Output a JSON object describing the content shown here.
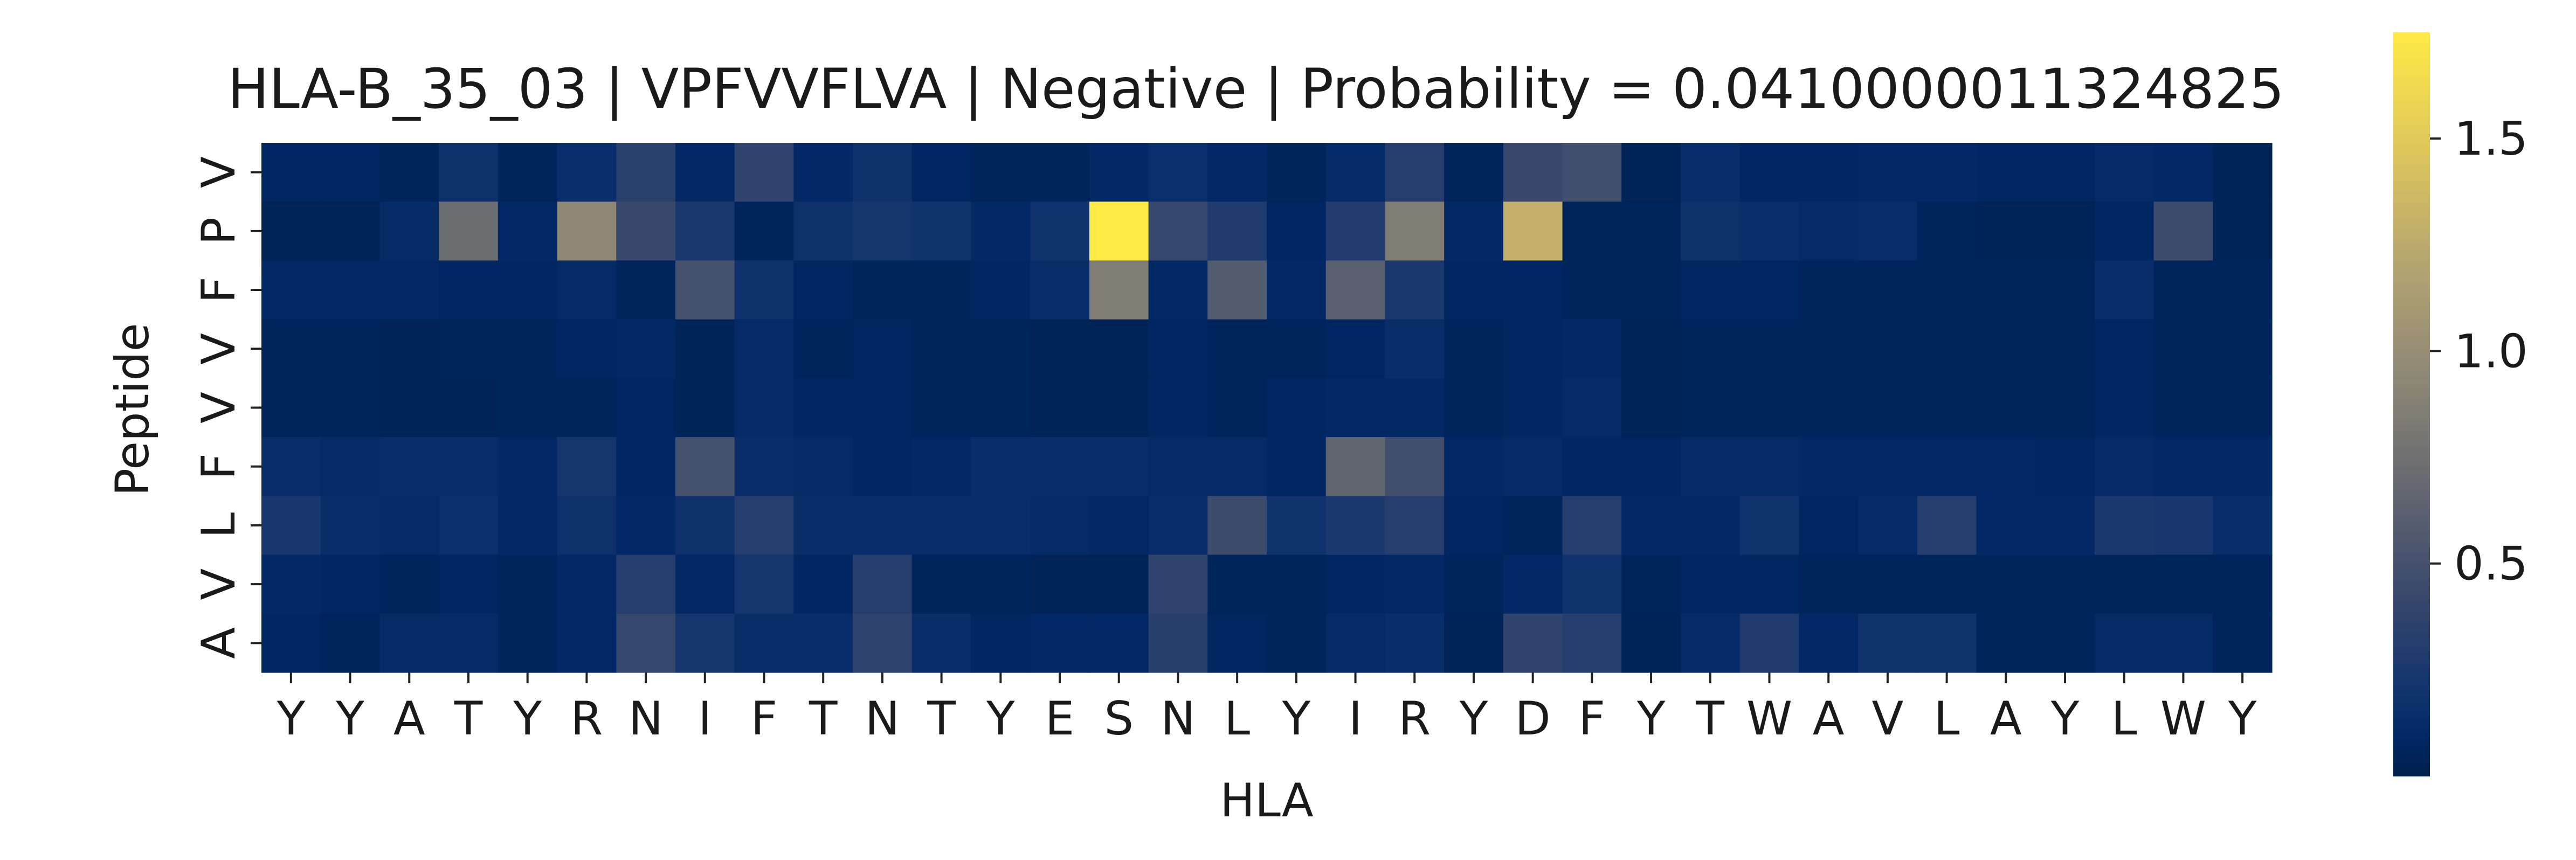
{
  "chart_data": {
    "type": "heatmap",
    "title": "HLA-B_35_03 | VPFVVFLVA | Negative | Probability = 0.0410000011324825",
    "xlabel": "HLA",
    "ylabel": "Peptide",
    "x_tick_labels": [
      "Y",
      "Y",
      "A",
      "T",
      "Y",
      "R",
      "N",
      "I",
      "F",
      "T",
      "N",
      "T",
      "Y",
      "E",
      "S",
      "N",
      "L",
      "Y",
      "I",
      "R",
      "Y",
      "D",
      "F",
      "Y",
      "T",
      "W",
      "A",
      "V",
      "L",
      "A",
      "Y",
      "L",
      "W",
      "Y"
    ],
    "y_tick_labels": [
      "V",
      "P",
      "F",
      "V",
      "V",
      "F",
      "L",
      "V",
      "A"
    ],
    "colormap": "cividis",
    "color_range": [
      0.0,
      1.75
    ],
    "colorbar_ticks": [
      {
        "value": 0.5,
        "label": "0.5"
      },
      {
        "value": 1.0,
        "label": "1.0"
      },
      {
        "value": 1.5,
        "label": "1.5"
      }
    ],
    "values": [
      [
        0.08,
        0.08,
        0.05,
        0.18,
        0.05,
        0.15,
        0.35,
        0.1,
        0.38,
        0.1,
        0.18,
        0.08,
        0.06,
        0.05,
        0.1,
        0.16,
        0.1,
        0.06,
        0.13,
        0.32,
        0.06,
        0.42,
        0.48,
        0.04,
        0.14,
        0.08,
        0.08,
        0.1,
        0.1,
        0.08,
        0.08,
        0.12,
        0.1,
        0.04
      ],
      [
        0.04,
        0.04,
        0.13,
        0.72,
        0.1,
        0.95,
        0.42,
        0.25,
        0.06,
        0.18,
        0.22,
        0.2,
        0.1,
        0.2,
        1.75,
        0.4,
        0.28,
        0.08,
        0.3,
        0.85,
        0.1,
        1.3,
        0.05,
        0.06,
        0.18,
        0.15,
        0.12,
        0.14,
        0.06,
        0.04,
        0.04,
        0.08,
        0.45,
        0.04
      ],
      [
        0.1,
        0.1,
        0.1,
        0.08,
        0.08,
        0.12,
        0.06,
        0.5,
        0.18,
        0.08,
        0.05,
        0.06,
        0.08,
        0.14,
        0.85,
        0.1,
        0.58,
        0.1,
        0.62,
        0.25,
        0.08,
        0.08,
        0.06,
        0.06,
        0.08,
        0.08,
        0.06,
        0.06,
        0.06,
        0.06,
        0.06,
        0.14,
        0.06,
        0.06
      ],
      [
        0.06,
        0.06,
        0.04,
        0.05,
        0.05,
        0.08,
        0.1,
        0.04,
        0.12,
        0.06,
        0.08,
        0.06,
        0.05,
        0.04,
        0.04,
        0.08,
        0.06,
        0.06,
        0.08,
        0.14,
        0.06,
        0.08,
        0.1,
        0.04,
        0.06,
        0.06,
        0.06,
        0.06,
        0.06,
        0.06,
        0.06,
        0.08,
        0.06,
        0.06
      ],
      [
        0.06,
        0.06,
        0.04,
        0.04,
        0.05,
        0.06,
        0.08,
        0.04,
        0.12,
        0.08,
        0.08,
        0.06,
        0.05,
        0.04,
        0.04,
        0.08,
        0.06,
        0.08,
        0.1,
        0.1,
        0.06,
        0.08,
        0.12,
        0.04,
        0.06,
        0.06,
        0.06,
        0.06,
        0.06,
        0.06,
        0.06,
        0.08,
        0.06,
        0.06
      ],
      [
        0.14,
        0.12,
        0.14,
        0.14,
        0.1,
        0.22,
        0.08,
        0.5,
        0.14,
        0.12,
        0.08,
        0.1,
        0.14,
        0.14,
        0.14,
        0.12,
        0.12,
        0.08,
        0.65,
        0.48,
        0.1,
        0.12,
        0.08,
        0.08,
        0.12,
        0.12,
        0.1,
        0.1,
        0.1,
        0.1,
        0.08,
        0.12,
        0.1,
        0.1
      ],
      [
        0.24,
        0.14,
        0.12,
        0.16,
        0.1,
        0.18,
        0.1,
        0.18,
        0.32,
        0.14,
        0.14,
        0.14,
        0.14,
        0.12,
        0.1,
        0.14,
        0.45,
        0.2,
        0.26,
        0.32,
        0.08,
        0.06,
        0.32,
        0.1,
        0.1,
        0.2,
        0.08,
        0.12,
        0.32,
        0.1,
        0.1,
        0.26,
        0.24,
        0.14
      ],
      [
        0.1,
        0.08,
        0.06,
        0.08,
        0.06,
        0.1,
        0.32,
        0.1,
        0.22,
        0.08,
        0.32,
        0.06,
        0.06,
        0.04,
        0.04,
        0.38,
        0.06,
        0.06,
        0.08,
        0.1,
        0.06,
        0.1,
        0.2,
        0.06,
        0.08,
        0.08,
        0.06,
        0.06,
        0.06,
        0.06,
        0.06,
        0.06,
        0.06,
        0.06
      ],
      [
        0.08,
        0.06,
        0.12,
        0.12,
        0.06,
        0.1,
        0.4,
        0.22,
        0.14,
        0.14,
        0.36,
        0.14,
        0.08,
        0.1,
        0.1,
        0.34,
        0.08,
        0.06,
        0.12,
        0.14,
        0.04,
        0.38,
        0.32,
        0.04,
        0.12,
        0.28,
        0.1,
        0.2,
        0.2,
        0.06,
        0.06,
        0.12,
        0.12,
        0.06
      ]
    ]
  }
}
